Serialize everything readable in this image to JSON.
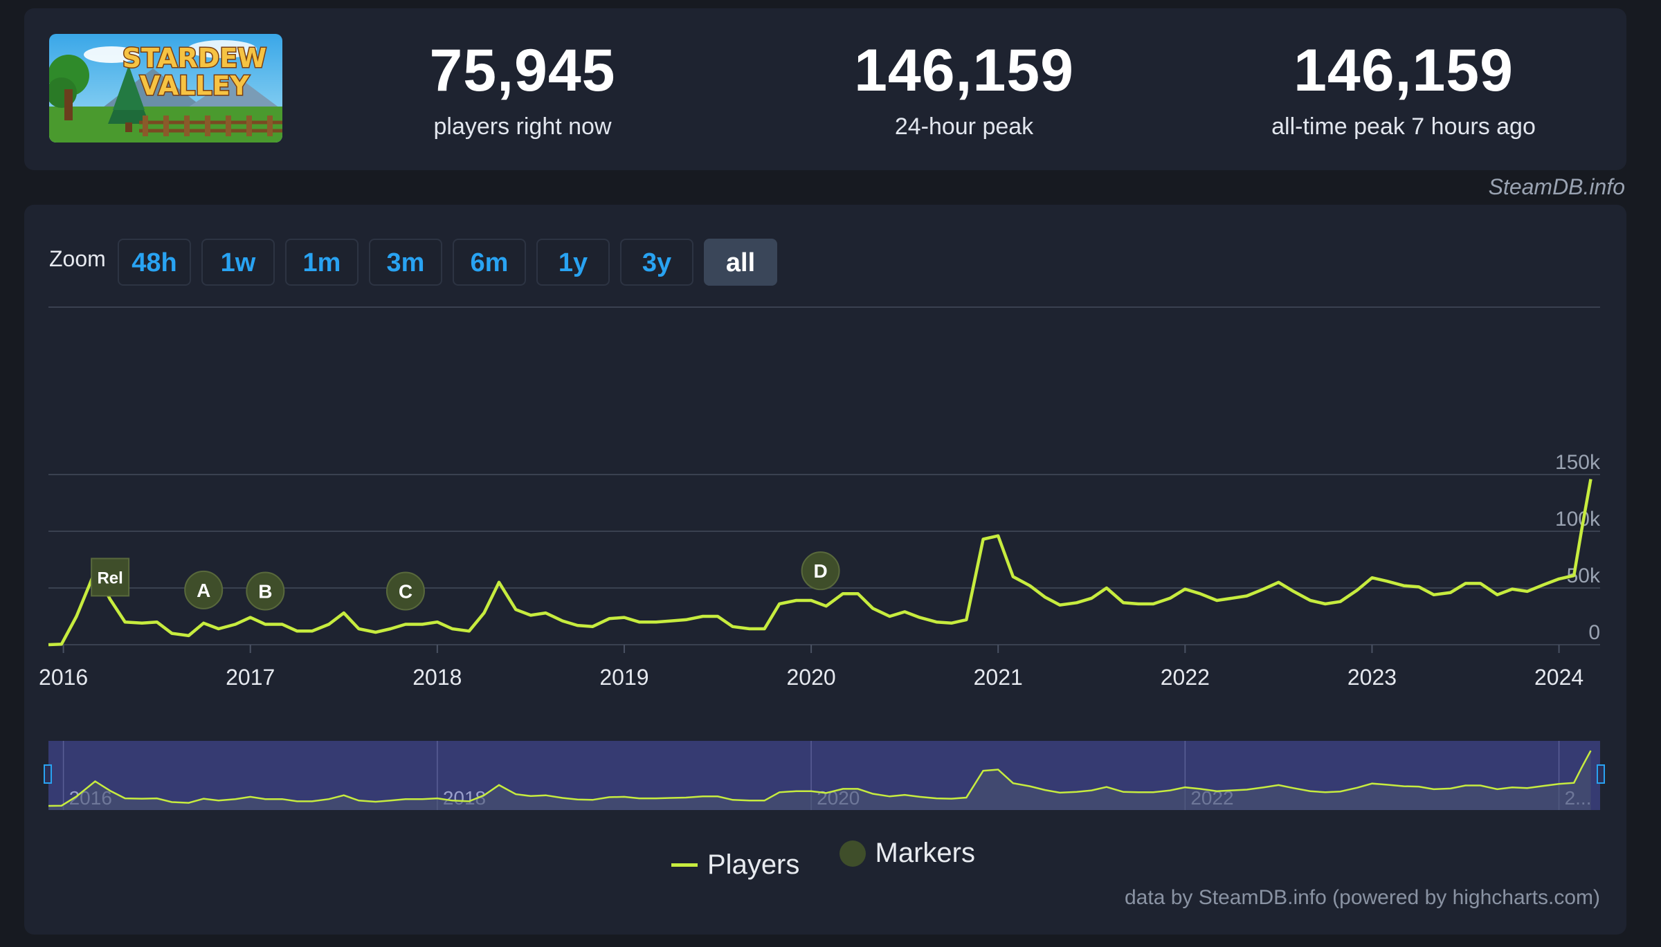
{
  "game": {
    "logo_text_line1": "STARDEW",
    "logo_text_line2": "VALLEY"
  },
  "stats": [
    {
      "value": "75,945",
      "label": "players right now"
    },
    {
      "value": "146,159",
      "label": "24-hour peak"
    },
    {
      "value": "146,159",
      "label": "all-time peak 7 hours ago"
    }
  ],
  "brand": "SteamDB.info",
  "zoom": {
    "label": "Zoom",
    "options": [
      "48h",
      "1w",
      "1m",
      "3m",
      "6m",
      "1y",
      "3y",
      "all"
    ],
    "active": "all"
  },
  "legend": {
    "players": "Players",
    "markers": "Markers"
  },
  "credits": "data by SteamDB.info (powered by highcharts.com)",
  "colors": {
    "line": "#c7ec3f",
    "marker": "#3f4e2a",
    "navigator_bg": "#363b72",
    "panel": "#1e2330"
  },
  "chart_data": {
    "type": "line",
    "series": [
      {
        "name": "Players",
        "x": [
          2015.92,
          2015.99,
          2016.07,
          2016.17,
          2016.25,
          2016.33,
          2016.42,
          2016.5,
          2016.58,
          2016.67,
          2016.75,
          2016.83,
          2016.92,
          2017.0,
          2017.08,
          2017.17,
          2017.25,
          2017.33,
          2017.42,
          2017.5,
          2017.58,
          2017.67,
          2017.75,
          2017.83,
          2017.92,
          2018.0,
          2018.08,
          2018.17,
          2018.25,
          2018.33,
          2018.42,
          2018.5,
          2018.58,
          2018.67,
          2018.75,
          2018.83,
          2018.92,
          2019.0,
          2019.08,
          2019.17,
          2019.25,
          2019.33,
          2019.42,
          2019.5,
          2019.58,
          2019.67,
          2019.75,
          2019.83,
          2019.92,
          2020.0,
          2020.08,
          2020.17,
          2020.25,
          2020.33,
          2020.42,
          2020.5,
          2020.58,
          2020.67,
          2020.75,
          2020.83,
          2020.92,
          2021.0,
          2021.08,
          2021.17,
          2021.25,
          2021.33,
          2021.42,
          2021.5,
          2021.58,
          2021.67,
          2021.75,
          2021.83,
          2021.92,
          2022.0,
          2022.08,
          2022.17,
          2022.25,
          2022.33,
          2022.42,
          2022.5,
          2022.58,
          2022.67,
          2022.75,
          2022.83,
          2022.92,
          2023.0,
          2023.08,
          2023.17,
          2023.25,
          2023.33,
          2023.42,
          2023.5,
          2023.58,
          2023.67,
          2023.75,
          2023.83,
          2023.92,
          2024.0,
          2024.08,
          2024.12,
          2024.17
        ],
        "y": [
          0,
          500,
          25000,
          65000,
          40000,
          20000,
          19000,
          20000,
          10000,
          8000,
          19000,
          14000,
          18000,
          24000,
          18000,
          18000,
          12000,
          12000,
          18000,
          28000,
          14000,
          11000,
          14000,
          18000,
          18000,
          20000,
          14000,
          12000,
          28000,
          55000,
          31000,
          26000,
          28000,
          21000,
          17000,
          16000,
          23000,
          24000,
          20000,
          20000,
          21000,
          22000,
          25000,
          25000,
          16000,
          14000,
          14000,
          36000,
          39000,
          39000,
          34000,
          45000,
          45000,
          32000,
          25000,
          29000,
          24000,
          20000,
          19000,
          22000,
          93000,
          96000,
          60000,
          52000,
          42000,
          35000,
          37000,
          41000,
          50000,
          37000,
          36000,
          36000,
          41000,
          49000,
          45000,
          39000,
          41000,
          43000,
          49000,
          55000,
          47000,
          39000,
          36000,
          38000,
          48000,
          59000,
          56000,
          52000,
          51000,
          44000,
          46000,
          54000,
          54000,
          44000,
          49000,
          47000,
          53000,
          58000,
          61000,
          100000,
          146000
        ]
      }
    ],
    "markers": [
      {
        "label": "Rel",
        "x": 2016.25
      },
      {
        "label": "A",
        "x": 2016.75
      },
      {
        "label": "B",
        "x": 2017.08
      },
      {
        "label": "C",
        "x": 2017.83
      },
      {
        "label": "D",
        "x": 2020.05
      }
    ],
    "xticks": [
      "2016",
      "2017",
      "2018",
      "2019",
      "2020",
      "2021",
      "2022",
      "2023",
      "2024"
    ],
    "xtick_values": [
      2016,
      2017,
      2018,
      2019,
      2020,
      2021,
      2022,
      2023,
      2024
    ],
    "navigator_labels": [
      "2016",
      "2018",
      "2020",
      "2022",
      "2..."
    ],
    "yticks": [
      "0",
      "50k",
      "100k",
      "150k"
    ],
    "ytick_values": [
      0,
      50000,
      100000,
      150000
    ],
    "xlim": [
      2015.92,
      2024.22
    ],
    "ylim": [
      0,
      150000
    ],
    "grid": true,
    "title": "",
    "xlabel": "",
    "ylabel": ""
  }
}
